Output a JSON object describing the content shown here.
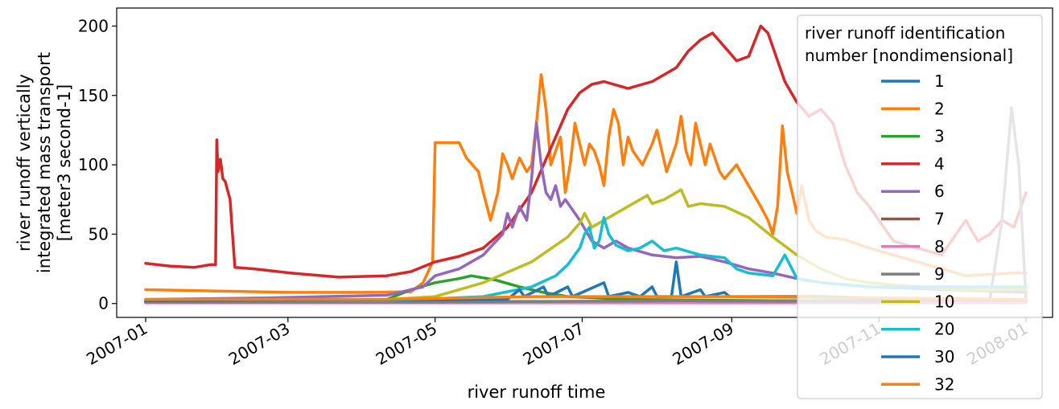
{
  "chart_data": {
    "type": "line",
    "xlabel": "river runoff time",
    "ylabel_lines": [
      "river runoff vertically",
      "integrated mass transport",
      "[meter3 second-1]"
    ],
    "x_tick_labels": [
      "2007-01",
      "2007-03",
      "2007-05",
      "2007-07",
      "2007-09",
      "2007-11",
      "2008-01"
    ],
    "x_ticks_day": [
      0,
      59,
      120,
      181,
      243,
      304,
      365
    ],
    "xlim_day": [
      -12,
      376
    ],
    "y_ticks": [
      0,
      50,
      100,
      150,
      200
    ],
    "ylim": [
      -10,
      213
    ],
    "grid": false,
    "legend": {
      "title_lines": [
        "river runoff identification",
        "number [nondimensional]"
      ],
      "placement": "upper right"
    },
    "series": [
      {
        "name": "1",
        "color": "#1f77b4",
        "points": [
          [
            0,
            1
          ],
          [
            60,
            1
          ],
          [
            120,
            1
          ],
          [
            180,
            1.5
          ],
          [
            240,
            1.5
          ],
          [
            300,
            1.2
          ],
          [
            365,
            1
          ]
        ]
      },
      {
        "name": "2",
        "color": "#ff7f0e",
        "points": [
          [
            0,
            10
          ],
          [
            30,
            9
          ],
          [
            60,
            8
          ],
          [
            90,
            8
          ],
          [
            110,
            8.5
          ],
          [
            115,
            15
          ],
          [
            119,
            30
          ],
          [
            120,
            116
          ],
          [
            130,
            116
          ],
          [
            133,
            105
          ],
          [
            138,
            95
          ],
          [
            140,
            80
          ],
          [
            143,
            60
          ],
          [
            146,
            80
          ],
          [
            148,
            108
          ],
          [
            150,
            100
          ],
          [
            152,
            90
          ],
          [
            155,
            105
          ],
          [
            158,
            95
          ],
          [
            160,
            100
          ],
          [
            162,
            130
          ],
          [
            164,
            165
          ],
          [
            166,
            140
          ],
          [
            168,
            100
          ],
          [
            170,
            110
          ],
          [
            172,
            120
          ],
          [
            174,
            80
          ],
          [
            176,
            100
          ],
          [
            178,
            130
          ],
          [
            180,
            115
          ],
          [
            182,
            100
          ],
          [
            184,
            115
          ],
          [
            186,
            110
          ],
          [
            188,
            100
          ],
          [
            190,
            85
          ],
          [
            192,
            120
          ],
          [
            194,
            140
          ],
          [
            196,
            130
          ],
          [
            198,
            100
          ],
          [
            200,
            120
          ],
          [
            202,
            110
          ],
          [
            204,
            105
          ],
          [
            206,
            100
          ],
          [
            210,
            115
          ],
          [
            212,
            125
          ],
          [
            214,
            110
          ],
          [
            216,
            95
          ],
          [
            218,
            105
          ],
          [
            220,
            115
          ],
          [
            222,
            135
          ],
          [
            224,
            110
          ],
          [
            226,
            100
          ],
          [
            228,
            130
          ],
          [
            230,
            115
          ],
          [
            232,
            100
          ],
          [
            234,
            115
          ],
          [
            236,
            105
          ],
          [
            238,
            95
          ],
          [
            240,
            90
          ],
          [
            245,
            100
          ],
          [
            250,
            85
          ],
          [
            255,
            70
          ],
          [
            258,
            60
          ],
          [
            260,
            50
          ],
          [
            262,
            70
          ],
          [
            264,
            128
          ],
          [
            266,
            95
          ],
          [
            268,
            80
          ],
          [
            270,
            65
          ],
          [
            272,
            85
          ],
          [
            275,
            60
          ],
          [
            278,
            52
          ],
          [
            282,
            48
          ],
          [
            290,
            46
          ],
          [
            300,
            40
          ],
          [
            320,
            30
          ],
          [
            340,
            20
          ],
          [
            360,
            22
          ],
          [
            365,
            22
          ]
        ]
      },
      {
        "name": "3",
        "color": "#2ca02c",
        "points": [
          [
            0,
            2
          ],
          [
            60,
            2
          ],
          [
            100,
            3
          ],
          [
            110,
            10
          ],
          [
            120,
            15
          ],
          [
            130,
            18
          ],
          [
            135,
            20
          ],
          [
            145,
            17
          ],
          [
            155,
            12
          ],
          [
            165,
            8
          ],
          [
            175,
            5
          ],
          [
            200,
            3
          ],
          [
            260,
            2
          ],
          [
            365,
            2
          ]
        ]
      },
      {
        "name": "4",
        "color": "#d62728",
        "points": [
          [
            0,
            29
          ],
          [
            10,
            27
          ],
          [
            20,
            26
          ],
          [
            27,
            28
          ],
          [
            29,
            28
          ],
          [
            29.5,
            118
          ],
          [
            30,
            95
          ],
          [
            31,
            104
          ],
          [
            32,
            90
          ],
          [
            33,
            88
          ],
          [
            35,
            75
          ],
          [
            36,
            50
          ],
          [
            37,
            26
          ],
          [
            45,
            25
          ],
          [
            60,
            22
          ],
          [
            80,
            19
          ],
          [
            100,
            20
          ],
          [
            110,
            23
          ],
          [
            120,
            30
          ],
          [
            130,
            34
          ],
          [
            140,
            40
          ],
          [
            150,
            55
          ],
          [
            160,
            80
          ],
          [
            165,
            100
          ],
          [
            170,
            120
          ],
          [
            175,
            140
          ],
          [
            180,
            152
          ],
          [
            185,
            158
          ],
          [
            190,
            160
          ],
          [
            200,
            155
          ],
          [
            210,
            160
          ],
          [
            215,
            165
          ],
          [
            220,
            170
          ],
          [
            225,
            182
          ],
          [
            230,
            190
          ],
          [
            235,
            195
          ],
          [
            240,
            185
          ],
          [
            245,
            175
          ],
          [
            250,
            178
          ],
          [
            255,
            200
          ],
          [
            258,
            195
          ],
          [
            262,
            175
          ],
          [
            265,
            160
          ],
          [
            270,
            145
          ],
          [
            275,
            135
          ],
          [
            280,
            140
          ],
          [
            285,
            130
          ],
          [
            290,
            100
          ],
          [
            295,
            80
          ],
          [
            300,
            70
          ],
          [
            310,
            45
          ],
          [
            320,
            40
          ],
          [
            330,
            35
          ],
          [
            340,
            60
          ],
          [
            345,
            45
          ],
          [
            350,
            50
          ],
          [
            355,
            60
          ],
          [
            360,
            55
          ],
          [
            365,
            80
          ]
        ]
      },
      {
        "name": "6",
        "color": "#9467bd",
        "points": [
          [
            0,
            3
          ],
          [
            50,
            4
          ],
          [
            100,
            6
          ],
          [
            115,
            12
          ],
          [
            120,
            20
          ],
          [
            130,
            25
          ],
          [
            140,
            35
          ],
          [
            148,
            50
          ],
          [
            150,
            65
          ],
          [
            152,
            55
          ],
          [
            155,
            70
          ],
          [
            158,
            60
          ],
          [
            160,
            90
          ],
          [
            162,
            130
          ],
          [
            164,
            100
          ],
          [
            166,
            80
          ],
          [
            168,
            75
          ],
          [
            170,
            85
          ],
          [
            172,
            70
          ],
          [
            174,
            75
          ],
          [
            178,
            65
          ],
          [
            180,
            60
          ],
          [
            185,
            45
          ],
          [
            190,
            40
          ],
          [
            195,
            45
          ],
          [
            200,
            40
          ],
          [
            210,
            35
          ],
          [
            220,
            33
          ],
          [
            230,
            34
          ],
          [
            240,
            30
          ],
          [
            250,
            25
          ],
          [
            260,
            22
          ],
          [
            270,
            18
          ],
          [
            280,
            15
          ],
          [
            300,
            12
          ],
          [
            365,
            8
          ]
        ]
      },
      {
        "name": "7",
        "color": "#8c564b",
        "points": [
          [
            0,
            1.5
          ],
          [
            365,
            1.5
          ]
        ]
      },
      {
        "name": "8",
        "color": "#e377c2",
        "points": [
          [
            0,
            0.5
          ],
          [
            365,
            0.5
          ]
        ]
      },
      {
        "name": "9",
        "color": "#7f7f7f",
        "points": [
          [
            0,
            1
          ],
          [
            120,
            1
          ],
          [
            220,
            2
          ],
          [
            300,
            1.5
          ],
          [
            350,
            3
          ],
          [
            355,
            60
          ],
          [
            359,
            141
          ],
          [
            362,
            100
          ],
          [
            365,
            2
          ]
        ]
      },
      {
        "name": "10",
        "color": "#bcbd22",
        "points": [
          [
            0,
            3
          ],
          [
            100,
            3
          ],
          [
            120,
            5
          ],
          [
            140,
            15
          ],
          [
            160,
            30
          ],
          [
            175,
            48
          ],
          [
            180,
            58
          ],
          [
            182,
            65
          ],
          [
            185,
            55
          ],
          [
            190,
            60
          ],
          [
            195,
            65
          ],
          [
            200,
            70
          ],
          [
            205,
            75
          ],
          [
            208,
            78
          ],
          [
            210,
            72
          ],
          [
            215,
            75
          ],
          [
            220,
            80
          ],
          [
            222,
            82
          ],
          [
            225,
            70
          ],
          [
            230,
            72
          ],
          [
            240,
            70
          ],
          [
            250,
            62
          ],
          [
            260,
            48
          ],
          [
            270,
            35
          ],
          [
            280,
            25
          ],
          [
            290,
            18
          ],
          [
            300,
            15
          ],
          [
            320,
            12
          ],
          [
            340,
            10
          ],
          [
            365,
            10
          ]
        ]
      },
      {
        "name": "20",
        "color": "#17becf",
        "points": [
          [
            0,
            2
          ],
          [
            100,
            2
          ],
          [
            140,
            5
          ],
          [
            160,
            12
          ],
          [
            170,
            20
          ],
          [
            175,
            28
          ],
          [
            180,
            40
          ],
          [
            182,
            50
          ],
          [
            184,
            55
          ],
          [
            186,
            40
          ],
          [
            188,
            45
          ],
          [
            190,
            62
          ],
          [
            192,
            50
          ],
          [
            195,
            42
          ],
          [
            200,
            38
          ],
          [
            205,
            40
          ],
          [
            210,
            45
          ],
          [
            215,
            38
          ],
          [
            220,
            40
          ],
          [
            230,
            35
          ],
          [
            240,
            33
          ],
          [
            245,
            25
          ],
          [
            250,
            22
          ],
          [
            260,
            20
          ],
          [
            265,
            35
          ],
          [
            270,
            18
          ],
          [
            280,
            15
          ],
          [
            300,
            12
          ],
          [
            365,
            12
          ]
        ]
      },
      {
        "name": "30",
        "color": "#1f77b4",
        "points": [
          [
            0,
            2
          ],
          [
            150,
            3
          ],
          [
            155,
            10
          ],
          [
            157,
            5
          ],
          [
            165,
            12
          ],
          [
            167,
            5
          ],
          [
            175,
            12
          ],
          [
            177,
            5
          ],
          [
            190,
            15
          ],
          [
            192,
            5
          ],
          [
            200,
            8
          ],
          [
            205,
            5
          ],
          [
            210,
            12
          ],
          [
            212,
            5
          ],
          [
            218,
            5
          ],
          [
            220,
            30
          ],
          [
            222,
            5
          ],
          [
            230,
            10
          ],
          [
            232,
            5
          ],
          [
            240,
            8
          ],
          [
            242,
            5
          ],
          [
            260,
            5
          ],
          [
            280,
            5
          ],
          [
            300,
            4
          ],
          [
            365,
            3
          ]
        ]
      },
      {
        "name": "32",
        "color": "#ff7f0e",
        "points": [
          [
            0,
            3
          ],
          [
            100,
            3
          ],
          [
            160,
            5
          ],
          [
            240,
            5
          ],
          [
            300,
            4
          ],
          [
            365,
            3
          ]
        ]
      }
    ]
  }
}
